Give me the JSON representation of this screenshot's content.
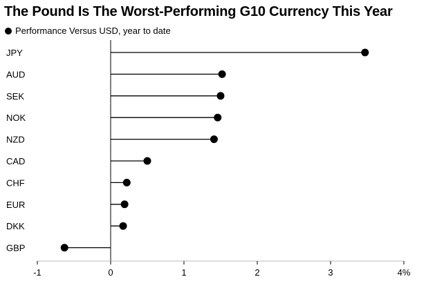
{
  "chart_data": {
    "type": "lollipop",
    "title": "The Pound Is The Worst-Performing G10 Currency This Year",
    "legend": {
      "label": "Performance Versus USD, year to date",
      "placement": "top-left"
    },
    "categories": [
      "JPY",
      "AUD",
      "SEK",
      "NOK",
      "NZD",
      "CAD",
      "CHF",
      "EUR",
      "DKK",
      "GBP"
    ],
    "values": [
      3.47,
      1.52,
      1.5,
      1.46,
      1.41,
      0.5,
      0.22,
      0.19,
      0.17,
      -0.63
    ],
    "xlim": [
      -1,
      4
    ],
    "xticks": [
      -1,
      0,
      1,
      2,
      3,
      4
    ],
    "xtick_labels": [
      "-1",
      "0",
      "1",
      "2",
      "3",
      "4%"
    ],
    "grid": false,
    "colors": {
      "marker": "#000000",
      "line": "#000000"
    }
  }
}
